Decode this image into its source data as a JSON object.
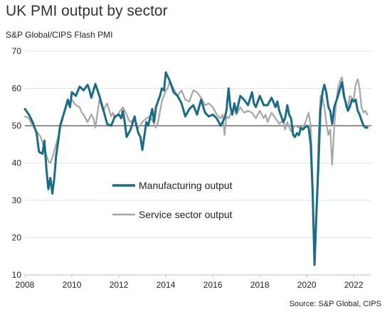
{
  "title": "UK PMI output by sector",
  "subtitle": "S&P Global/CIPS Flash PMI",
  "source": "Source: S&P Global, CIPS",
  "chart_data": {
    "type": "line",
    "title": "UK PMI output by sector",
    "subtitle": "S&P Global/CIPS Flash PMI",
    "xlabel": "",
    "ylabel": "",
    "xlim": [
      2008,
      2022.75
    ],
    "ylim": [
      10,
      70
    ],
    "yticks": [
      10,
      20,
      30,
      40,
      50,
      60,
      70
    ],
    "xticks": [
      2008,
      2010,
      2012,
      2014,
      2016,
      2018,
      2020,
      2022
    ],
    "reference_line": 50,
    "grid": "horizontal",
    "legend_position": "center-left",
    "series": [
      {
        "name": "Manufacturing output",
        "color": "#1a6b85",
        "points": [
          [
            2008.0,
            54.5
          ],
          [
            2008.17,
            53.0
          ],
          [
            2008.33,
            51.0
          ],
          [
            2008.5,
            48.0
          ],
          [
            2008.6,
            43.0
          ],
          [
            2008.75,
            42.5
          ],
          [
            2008.83,
            46.0
          ],
          [
            2008.92,
            38.0
          ],
          [
            2009.0,
            33.0
          ],
          [
            2009.08,
            36.0
          ],
          [
            2009.17,
            31.8
          ],
          [
            2009.25,
            36.0
          ],
          [
            2009.33,
            42.0
          ],
          [
            2009.42,
            46.0
          ],
          [
            2009.5,
            50.0
          ],
          [
            2009.67,
            53.5
          ],
          [
            2009.83,
            57.0
          ],
          [
            2009.92,
            55.0
          ],
          [
            2010.0,
            59.0
          ],
          [
            2010.17,
            58.0
          ],
          [
            2010.33,
            60.5
          ],
          [
            2010.5,
            59.5
          ],
          [
            2010.67,
            61.0
          ],
          [
            2010.75,
            59.5
          ],
          [
            2010.83,
            57.5
          ],
          [
            2011.0,
            61.2
          ],
          [
            2011.17,
            58.0
          ],
          [
            2011.33,
            54.5
          ],
          [
            2011.5,
            50.5
          ],
          [
            2011.67,
            50.0
          ],
          [
            2011.83,
            52.5
          ],
          [
            2012.0,
            53.0
          ],
          [
            2012.1,
            52.0
          ],
          [
            2012.17,
            54.0
          ],
          [
            2012.25,
            51.0
          ],
          [
            2012.33,
            47.0
          ],
          [
            2012.42,
            48.0
          ],
          [
            2012.5,
            49.0
          ],
          [
            2012.67,
            52.5
          ],
          [
            2012.75,
            50.0
          ],
          [
            2012.83,
            48.0
          ],
          [
            2012.92,
            47.0
          ],
          [
            2013.0,
            43.5
          ],
          [
            2013.08,
            47.0
          ],
          [
            2013.17,
            51.0
          ],
          [
            2013.25,
            50.0
          ],
          [
            2013.42,
            54.5
          ],
          [
            2013.5,
            51.0
          ],
          [
            2013.58,
            55.0
          ],
          [
            2013.75,
            58.0
          ],
          [
            2013.83,
            60.0
          ],
          [
            2013.92,
            59.5
          ],
          [
            2014.0,
            64.3
          ],
          [
            2014.17,
            62.0
          ],
          [
            2014.33,
            59.0
          ],
          [
            2014.5,
            58.0
          ],
          [
            2014.67,
            56.0
          ],
          [
            2014.83,
            52.5
          ],
          [
            2015.0,
            54.5
          ],
          [
            2015.17,
            55.5
          ],
          [
            2015.33,
            53.0
          ],
          [
            2015.5,
            57.0
          ],
          [
            2015.67,
            53.5
          ],
          [
            2015.83,
            52.5
          ],
          [
            2016.0,
            53.0
          ],
          [
            2016.17,
            52.0
          ],
          [
            2016.33,
            50.0
          ],
          [
            2016.42,
            51.0
          ],
          [
            2016.5,
            52.0
          ],
          [
            2016.58,
            54.0
          ],
          [
            2016.67,
            60.0
          ],
          [
            2016.75,
            55.0
          ],
          [
            2016.83,
            53.0
          ],
          [
            2016.92,
            56.0
          ],
          [
            2017.0,
            53.5
          ],
          [
            2017.17,
            58.0
          ],
          [
            2017.33,
            57.0
          ],
          [
            2017.5,
            55.5
          ],
          [
            2017.67,
            59.0
          ],
          [
            2017.75,
            56.0
          ],
          [
            2017.83,
            55.0
          ],
          [
            2018.0,
            58.0
          ],
          [
            2018.17,
            55.5
          ],
          [
            2018.33,
            55.5
          ],
          [
            2018.5,
            57.5
          ],
          [
            2018.67,
            55.0
          ],
          [
            2018.75,
            56.5
          ],
          [
            2018.83,
            54.0
          ],
          [
            2019.0,
            51.0
          ],
          [
            2019.08,
            52.0
          ],
          [
            2019.17,
            55.5
          ],
          [
            2019.25,
            53.0
          ],
          [
            2019.33,
            52.0
          ],
          [
            2019.42,
            47.5
          ],
          [
            2019.5,
            47.0
          ],
          [
            2019.58,
            48.0
          ],
          [
            2019.67,
            47.5
          ],
          [
            2019.75,
            49.5
          ],
          [
            2019.83,
            49.0
          ],
          [
            2020.0,
            50.0
          ],
          [
            2020.08,
            49.5
          ],
          [
            2020.17,
            45.0
          ],
          [
            2020.25,
            32.0
          ],
          [
            2020.33,
            12.7
          ],
          [
            2020.42,
            28.0
          ],
          [
            2020.5,
            40.0
          ],
          [
            2020.58,
            54.0
          ],
          [
            2020.67,
            59.0
          ],
          [
            2020.75,
            61.0
          ],
          [
            2020.83,
            59.0
          ],
          [
            2020.92,
            55.0
          ],
          [
            2021.0,
            54.0
          ],
          [
            2021.08,
            50.5
          ],
          [
            2021.17,
            55.0
          ],
          [
            2021.33,
            58.0
          ],
          [
            2021.42,
            60.0
          ],
          [
            2021.5,
            61.7
          ],
          [
            2021.58,
            58.0
          ],
          [
            2021.67,
            56.0
          ],
          [
            2021.75,
            54.0
          ],
          [
            2021.83,
            55.0
          ],
          [
            2021.92,
            57.0
          ],
          [
            2022.0,
            56.5
          ],
          [
            2022.08,
            57.0
          ],
          [
            2022.17,
            54.0
          ],
          [
            2022.25,
            53.0
          ],
          [
            2022.33,
            51.5
          ],
          [
            2022.42,
            50.0
          ],
          [
            2022.5,
            49.5
          ],
          [
            2022.58,
            49.5
          ]
        ]
      },
      {
        "name": "Service sector output",
        "color": "#a6a6a6",
        "points": [
          [
            2008.0,
            52.5
          ],
          [
            2008.17,
            52.0
          ],
          [
            2008.33,
            50.0
          ],
          [
            2008.5,
            48.5
          ],
          [
            2008.67,
            47.0
          ],
          [
            2008.83,
            44.0
          ],
          [
            2008.92,
            42.0
          ],
          [
            2009.0,
            40.5
          ],
          [
            2009.08,
            40.0
          ],
          [
            2009.17,
            41.5
          ],
          [
            2009.33,
            45.0
          ],
          [
            2009.5,
            49.0
          ],
          [
            2009.67,
            53.5
          ],
          [
            2009.83,
            56.0
          ],
          [
            2010.0,
            57.0
          ],
          [
            2010.17,
            55.5
          ],
          [
            2010.33,
            55.0
          ],
          [
            2010.42,
            53.5
          ],
          [
            2010.5,
            53.0
          ],
          [
            2010.67,
            51.0
          ],
          [
            2010.83,
            53.0
          ],
          [
            2010.92,
            52.0
          ],
          [
            2011.0,
            49.5
          ],
          [
            2011.08,
            53.0
          ],
          [
            2011.17,
            57.0
          ],
          [
            2011.33,
            54.0
          ],
          [
            2011.5,
            56.0
          ],
          [
            2011.67,
            52.5
          ],
          [
            2011.75,
            53.5
          ],
          [
            2011.83,
            52.0
          ],
          [
            2012.0,
            53.5
          ],
          [
            2012.17,
            55.0
          ],
          [
            2012.33,
            53.0
          ],
          [
            2012.42,
            51.5
          ],
          [
            2012.5,
            51.0
          ],
          [
            2012.67,
            52.0
          ],
          [
            2012.75,
            50.5
          ],
          [
            2012.83,
            49.5
          ],
          [
            2013.0,
            51.0
          ],
          [
            2013.17,
            52.0
          ],
          [
            2013.33,
            52.5
          ],
          [
            2013.5,
            50.5
          ],
          [
            2013.58,
            49.5
          ],
          [
            2013.67,
            51.0
          ],
          [
            2013.83,
            56.5
          ],
          [
            2014.0,
            59.5
          ],
          [
            2014.08,
            60.0
          ],
          [
            2014.17,
            62.0
          ],
          [
            2014.33,
            60.0
          ],
          [
            2014.5,
            58.0
          ],
          [
            2014.67,
            59.5
          ],
          [
            2014.83,
            57.0
          ],
          [
            2015.0,
            56.5
          ],
          [
            2015.17,
            59.5
          ],
          [
            2015.33,
            59.0
          ],
          [
            2015.5,
            57.5
          ],
          [
            2015.67,
            55.5
          ],
          [
            2015.83,
            56.0
          ],
          [
            2016.0,
            55.0
          ],
          [
            2016.17,
            53.0
          ],
          [
            2016.33,
            52.0
          ],
          [
            2016.42,
            53.0
          ],
          [
            2016.5,
            47.5
          ],
          [
            2016.58,
            52.5
          ],
          [
            2016.67,
            52.0
          ],
          [
            2016.83,
            54.0
          ],
          [
            2016.92,
            55.5
          ],
          [
            2017.0,
            53.0
          ],
          [
            2017.17,
            55.0
          ],
          [
            2017.33,
            53.5
          ],
          [
            2017.5,
            54.0
          ],
          [
            2017.67,
            53.5
          ],
          [
            2017.83,
            52.0
          ],
          [
            2018.0,
            54.0
          ],
          [
            2018.17,
            52.0
          ],
          [
            2018.25,
            53.0
          ],
          [
            2018.33,
            51.0
          ],
          [
            2018.5,
            53.5
          ],
          [
            2018.67,
            52.0
          ],
          [
            2018.83,
            50.5
          ],
          [
            2019.0,
            51.5
          ],
          [
            2019.08,
            49.0
          ],
          [
            2019.17,
            51.0
          ],
          [
            2019.33,
            48.5
          ],
          [
            2019.5,
            50.0
          ],
          [
            2019.67,
            49.5
          ],
          [
            2019.83,
            49.0
          ],
          [
            2020.0,
            52.0
          ],
          [
            2020.08,
            53.5
          ],
          [
            2020.17,
            50.0
          ],
          [
            2020.25,
            35.0
          ],
          [
            2020.33,
            13.4
          ],
          [
            2020.42,
            29.0
          ],
          [
            2020.5,
            47.0
          ],
          [
            2020.58,
            58.0
          ],
          [
            2020.67,
            57.5
          ],
          [
            2020.75,
            55.0
          ],
          [
            2020.83,
            51.0
          ],
          [
            2020.92,
            47.5
          ],
          [
            2021.0,
            49.0
          ],
          [
            2021.08,
            39.5
          ],
          [
            2021.17,
            49.5
          ],
          [
            2021.25,
            56.5
          ],
          [
            2021.33,
            60.0
          ],
          [
            2021.42,
            62.0
          ],
          [
            2021.5,
            63.0
          ],
          [
            2021.58,
            59.5
          ],
          [
            2021.67,
            55.0
          ],
          [
            2021.75,
            55.0
          ],
          [
            2021.83,
            58.0
          ],
          [
            2021.92,
            57.5
          ],
          [
            2022.0,
            57.0
          ],
          [
            2022.08,
            61.0
          ],
          [
            2022.17,
            62.5
          ],
          [
            2022.25,
            60.0
          ],
          [
            2022.33,
            55.0
          ],
          [
            2022.42,
            53.5
          ],
          [
            2022.5,
            54.0
          ],
          [
            2022.58,
            53.0
          ]
        ]
      }
    ]
  }
}
